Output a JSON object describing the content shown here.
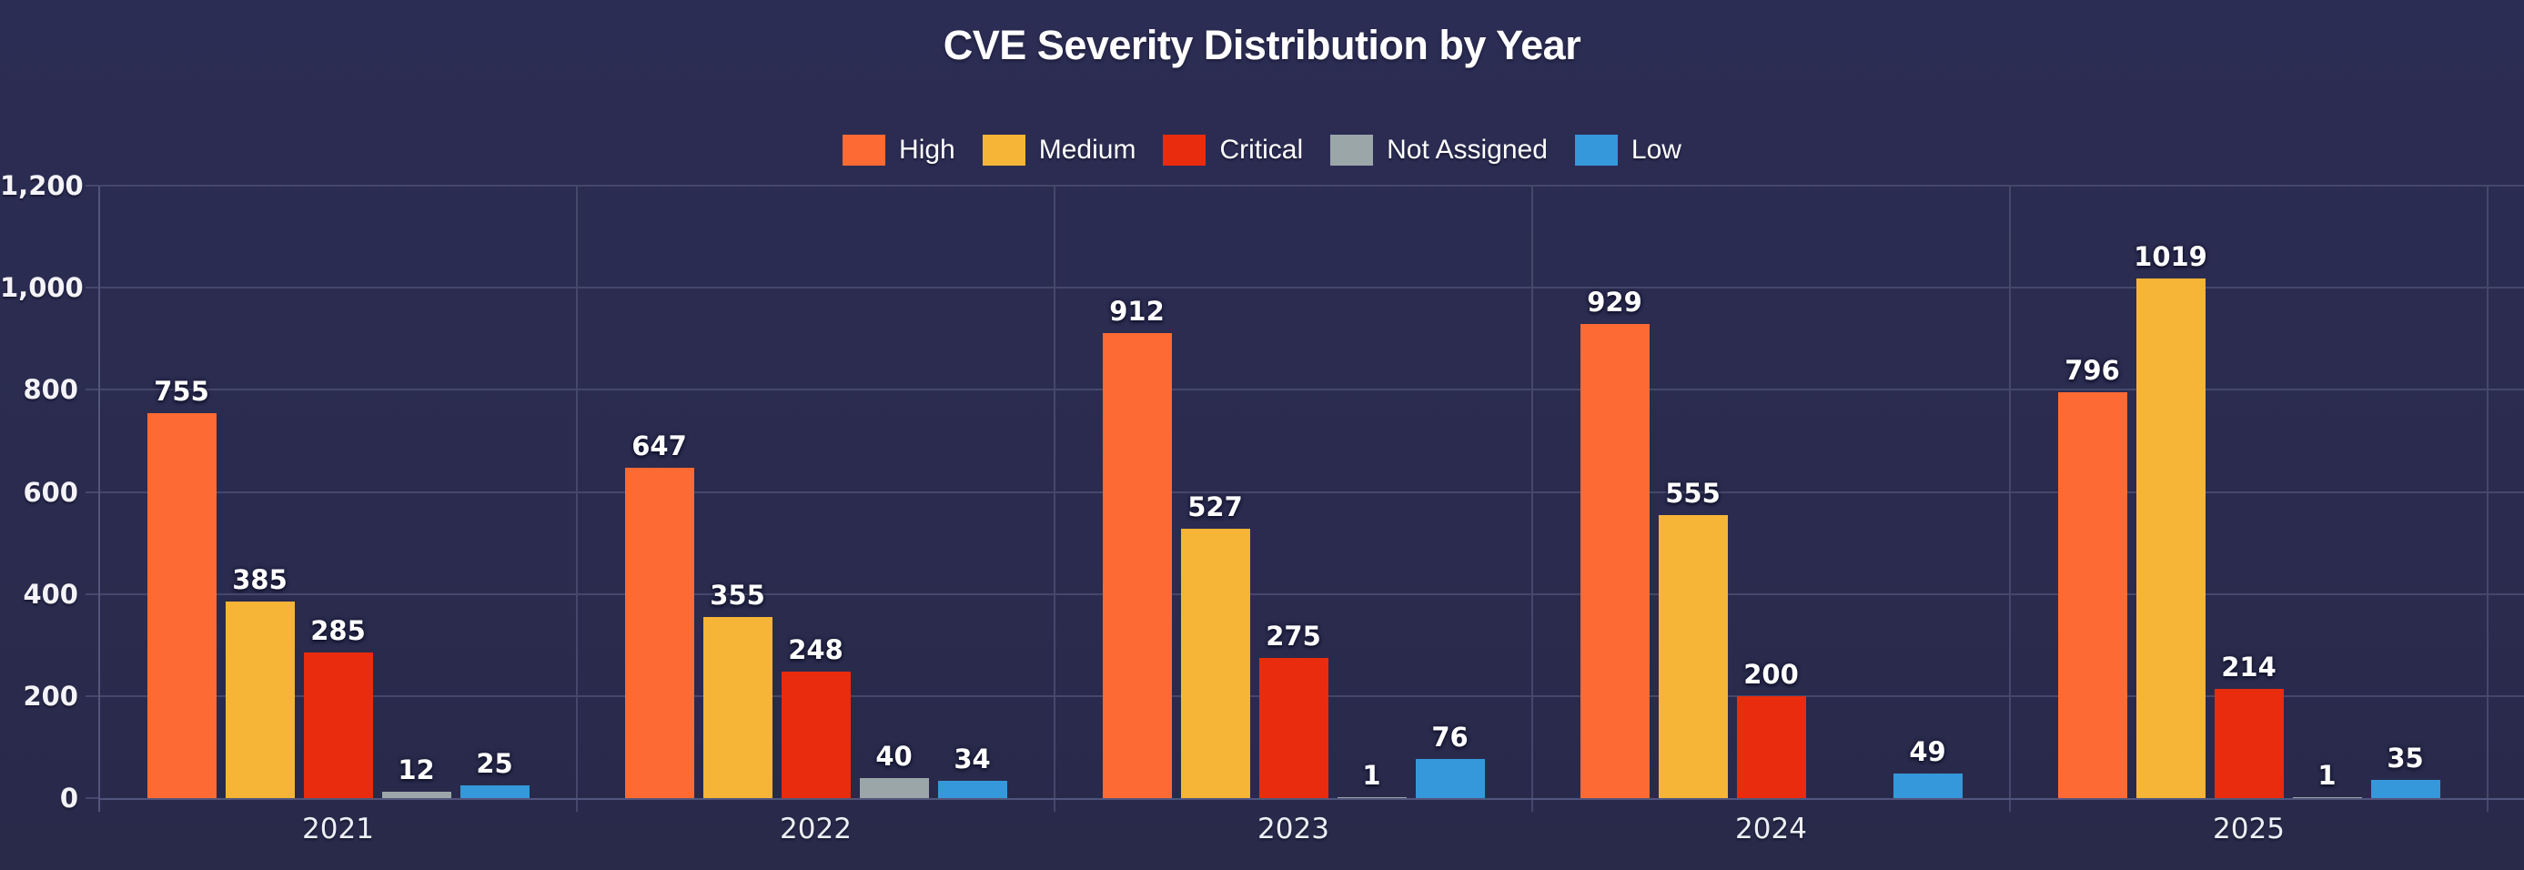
{
  "page": {
    "title": "CVE Severity Distribution by Year"
  },
  "chart_data": {
    "type": "bar",
    "title": "CVE Severity Distribution by Year",
    "categories": [
      "2021",
      "2022",
      "2023",
      "2024",
      "2025"
    ],
    "series": [
      {
        "name": "High",
        "color": "#fd6a33",
        "values": [
          755,
          647,
          912,
          929,
          796
        ]
      },
      {
        "name": "Medium",
        "color": "#f6b537",
        "values": [
          385,
          355,
          527,
          555,
          1019
        ]
      },
      {
        "name": "Critical",
        "color": "#e92c0d",
        "values": [
          285,
          248,
          275,
          200,
          214
        ]
      },
      {
        "name": "Not Assigned",
        "color": "#9ba6a9",
        "values": [
          12,
          40,
          1,
          0,
          1
        ]
      },
      {
        "name": "Low",
        "color": "#3598da",
        "values": [
          25,
          34,
          76,
          49,
          35
        ]
      }
    ],
    "ylim": [
      0,
      1200
    ],
    "ytick_values": [
      0,
      200,
      400,
      600,
      800,
      1000,
      1200
    ],
    "ytick_labels": [
      "0",
      "200",
      "400",
      "600",
      "800",
      "1,000",
      "1,200"
    ],
    "grid": true,
    "legend_position": "top",
    "value_labels": true,
    "background_color": "#2b2c51",
    "gridline_color": "#45476b",
    "text_color": "#ffffff"
  }
}
